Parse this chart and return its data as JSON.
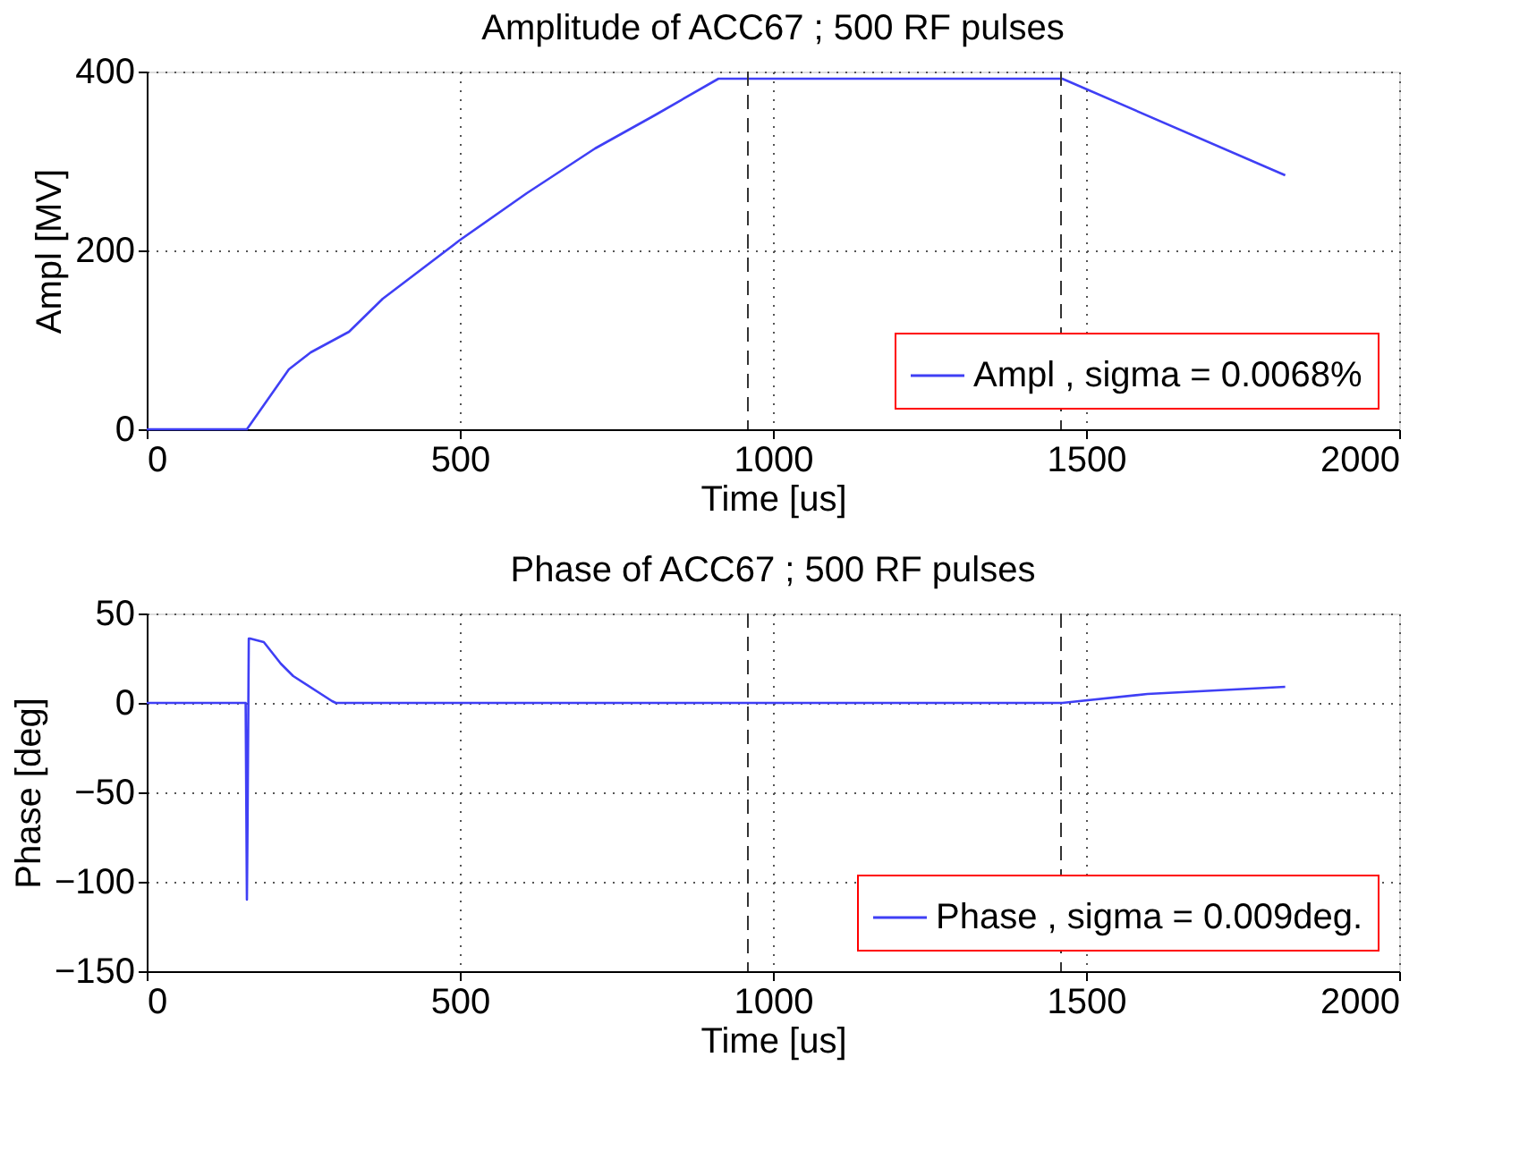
{
  "chart_data": [
    {
      "type": "line",
      "title": "Amplitude of ACC67 ; 500 RF pulses",
      "xlabel": "Time [us]",
      "ylabel": "Ampl [MV]",
      "xlim": [
        0,
        2000
      ],
      "xticks": [
        0,
        500,
        1000,
        1500,
        2000
      ],
      "ylim": [
        0,
        400
      ],
      "yticks": [
        0,
        200,
        400
      ],
      "grid": true,
      "legend": "bottom right",
      "line_style": "solid",
      "marker": "none",
      "series": [
        {
          "name": "Ampl , sigma = 0.0068%",
          "color": "#3f3ff5",
          "x": [
            0,
            160,
            227,
            262,
            323,
            377,
            499,
            607,
            716,
            811,
            913,
            1462,
            1818
          ],
          "values": [
            0,
            0,
            67,
            86,
            109,
            146,
            211,
            264,
            314,
            351,
            392,
            392,
            284
          ]
        }
      ],
      "ref_lines": [
        {
          "axis": "x",
          "value": 960,
          "line_style": "dashed",
          "color": "#333333"
        },
        {
          "axis": "x",
          "value": 1460,
          "line_style": "dashed",
          "color": "#333333"
        }
      ]
    },
    {
      "type": "line",
      "title": "Phase of ACC67 ; 500 RF pulses",
      "xlabel": "Time [us]",
      "ylabel": "Phase [deg]",
      "xlim": [
        0,
        2000
      ],
      "xticks": [
        0,
        500,
        1000,
        1500,
        2000
      ],
      "ylim": [
        -150,
        50
      ],
      "yticks": [
        -150,
        -100,
        -50,
        0,
        50
      ],
      "grid": true,
      "legend": "bottom right",
      "line_style": "solid",
      "marker": "none",
      "series": [
        {
          "name": "Phase , sigma = 0.009deg.",
          "color": "#3f3ff5",
          "x": [
            0,
            158,
            160,
            161,
            163,
            165,
            187,
            214,
            234,
            296,
            302,
            1462,
            1598,
            1818
          ],
          "values": [
            0,
            0,
            -110,
            -68,
            36,
            36,
            34,
            22,
            15,
            1,
            0,
            0,
            5,
            9
          ]
        }
      ],
      "ref_lines": [
        {
          "axis": "x",
          "value": 960,
          "line_style": "dashed",
          "color": "#333333"
        },
        {
          "axis": "x",
          "value": 1460,
          "line_style": "dashed",
          "color": "#333333"
        }
      ]
    }
  ]
}
